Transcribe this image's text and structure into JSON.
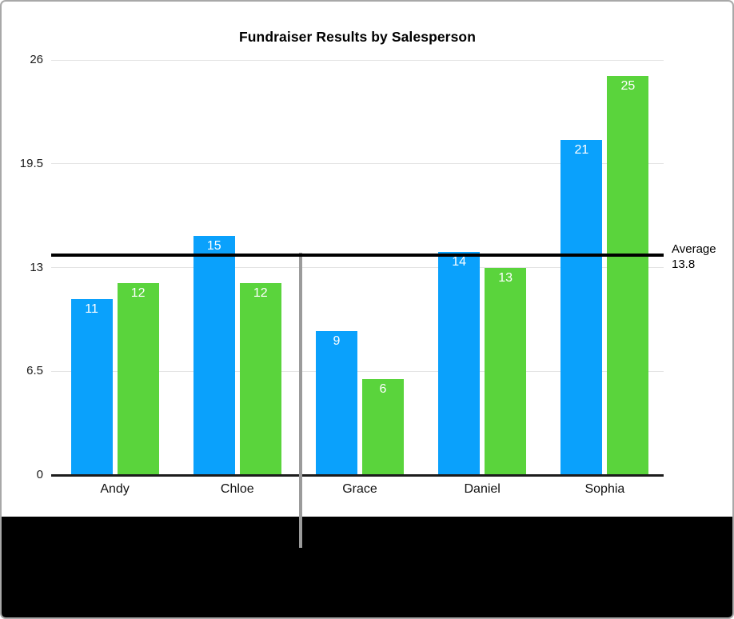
{
  "chart_data": {
    "type": "bar",
    "title": "Fundraiser Results by Salesperson",
    "categories": [
      "Andy",
      "Chloe",
      "Grace",
      "Daniel",
      "Sophia"
    ],
    "series": [
      {
        "name": "blue-series",
        "color": "#0AA1FC",
        "values": [
          11,
          15,
          9,
          14,
          21
        ]
      },
      {
        "name": "green-series",
        "color": "#5AD43C",
        "values": [
          12,
          12,
          6,
          13,
          25
        ]
      }
    ],
    "ylim": [
      0,
      26
    ],
    "yticks": [
      26,
      19.5,
      13,
      6.5,
      0
    ],
    "grid": true,
    "legend_position": "none",
    "bar_value_labels": true,
    "reference_line": {
      "value": 13.8,
      "label": "Average",
      "value_label": "13.8",
      "color": "#000000"
    }
  },
  "colors": {
    "bar_blue": "#0AA1FC",
    "bar_green": "#5AD43C",
    "gridline": "#E4E4E4",
    "axis_line": "#1C1C1C",
    "average_line": "#000000",
    "divider_line": "#9B9B9B",
    "frame_border": "#A8A8A8",
    "bottom_band": "#000000",
    "bar_label_text": "#ffffff"
  }
}
